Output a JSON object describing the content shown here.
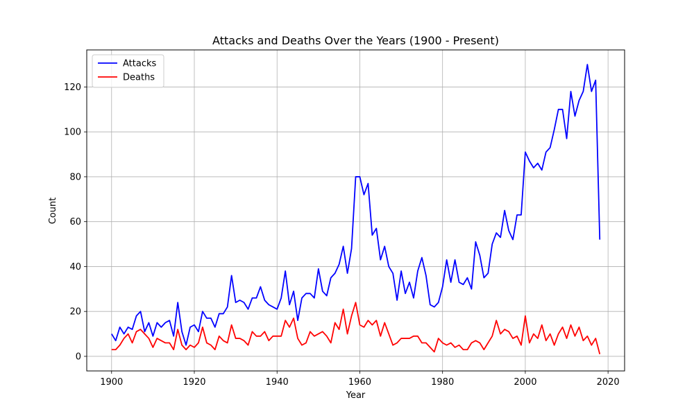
{
  "chart_data": {
    "type": "line",
    "title": "Attacks and Deaths Over the Years (1900 - Present)",
    "xlabel": "Year",
    "ylabel": "Count",
    "xlim": [
      1894,
      2024
    ],
    "ylim": [
      -6.5,
      136.5
    ],
    "x_ticks": [
      1900,
      1920,
      1940,
      1960,
      1980,
      2000,
      2020
    ],
    "y_ticks": [
      0,
      20,
      40,
      60,
      80,
      100,
      120
    ],
    "grid": true,
    "legend_position": "top-left",
    "x": [
      1900,
      1901,
      1902,
      1903,
      1904,
      1905,
      1906,
      1907,
      1908,
      1909,
      1910,
      1911,
      1912,
      1913,
      1914,
      1915,
      1916,
      1917,
      1918,
      1919,
      1920,
      1921,
      1922,
      1923,
      1924,
      1925,
      1926,
      1927,
      1928,
      1929,
      1930,
      1931,
      1932,
      1933,
      1934,
      1935,
      1936,
      1937,
      1938,
      1939,
      1940,
      1941,
      1942,
      1943,
      1944,
      1945,
      1946,
      1947,
      1948,
      1949,
      1950,
      1951,
      1952,
      1953,
      1954,
      1955,
      1956,
      1957,
      1958,
      1959,
      1960,
      1961,
      1962,
      1963,
      1964,
      1965,
      1966,
      1967,
      1968,
      1969,
      1970,
      1971,
      1972,
      1973,
      1974,
      1975,
      1976,
      1977,
      1978,
      1979,
      1980,
      1981,
      1982,
      1983,
      1984,
      1985,
      1986,
      1987,
      1988,
      1989,
      1990,
      1991,
      1992,
      1993,
      1994,
      1995,
      1996,
      1997,
      1998,
      1999,
      2000,
      2001,
      2002,
      2003,
      2004,
      2005,
      2006,
      2007,
      2008,
      2009,
      2010,
      2011,
      2012,
      2013,
      2014,
      2015,
      2016,
      2017,
      2018
    ],
    "series": [
      {
        "name": "Attacks",
        "color": "#0000ff",
        "values": [
          10,
          7,
          13,
          10,
          13,
          12,
          18,
          20,
          11,
          15,
          9,
          15,
          13,
          15,
          16,
          9,
          24,
          11,
          5,
          13,
          14,
          11,
          20,
          17,
          17,
          13,
          19,
          19,
          22,
          36,
          24,
          25,
          24,
          21,
          26,
          26,
          31,
          25,
          23,
          22,
          21,
          26,
          38,
          23,
          29,
          16,
          26,
          28,
          28,
          26,
          39,
          29,
          27,
          35,
          37,
          41,
          49,
          37,
          48,
          80,
          80,
          72,
          77,
          54,
          57,
          43,
          49,
          40,
          37,
          25,
          38,
          28,
          33,
          26,
          38,
          44,
          36,
          23,
          22,
          24,
          31,
          43,
          33,
          43,
          33,
          32,
          35,
          30,
          51,
          45,
          35,
          37,
          50,
          55,
          53,
          65,
          56,
          52,
          63,
          63,
          91,
          87,
          84,
          86,
          83,
          91,
          93,
          101,
          110,
          110,
          97,
          118,
          107,
          114,
          118,
          130,
          118,
          123,
          52
        ]
      },
      {
        "name": "Deaths",
        "color": "#ff0000",
        "values": [
          3,
          3,
          5,
          8,
          10,
          6,
          11,
          12,
          10,
          8,
          4,
          8,
          7,
          6,
          6,
          3,
          12,
          5,
          3,
          5,
          4,
          6,
          13,
          6,
          5,
          3,
          9,
          7,
          6,
          14,
          8,
          8,
          7,
          5,
          11,
          9,
          9,
          11,
          7,
          9,
          9,
          9,
          16,
          13,
          17,
          8,
          5,
          6,
          11,
          9,
          10,
          11,
          9,
          6,
          15,
          12,
          21,
          10,
          18,
          24,
          14,
          13,
          16,
          14,
          16,
          9,
          15,
          10,
          5,
          6,
          8,
          8,
          8,
          9,
          9,
          6,
          6,
          4,
          2,
          8,
          6,
          5,
          6,
          4,
          5,
          3,
          3,
          6,
          7,
          6,
          3,
          6,
          9,
          16,
          10,
          12,
          11,
          8,
          9,
          5,
          18,
          6,
          10,
          8,
          14,
          7,
          10,
          5,
          10,
          13,
          8,
          14,
          9,
          13,
          7,
          9,
          5,
          8,
          1
        ]
      }
    ]
  }
}
